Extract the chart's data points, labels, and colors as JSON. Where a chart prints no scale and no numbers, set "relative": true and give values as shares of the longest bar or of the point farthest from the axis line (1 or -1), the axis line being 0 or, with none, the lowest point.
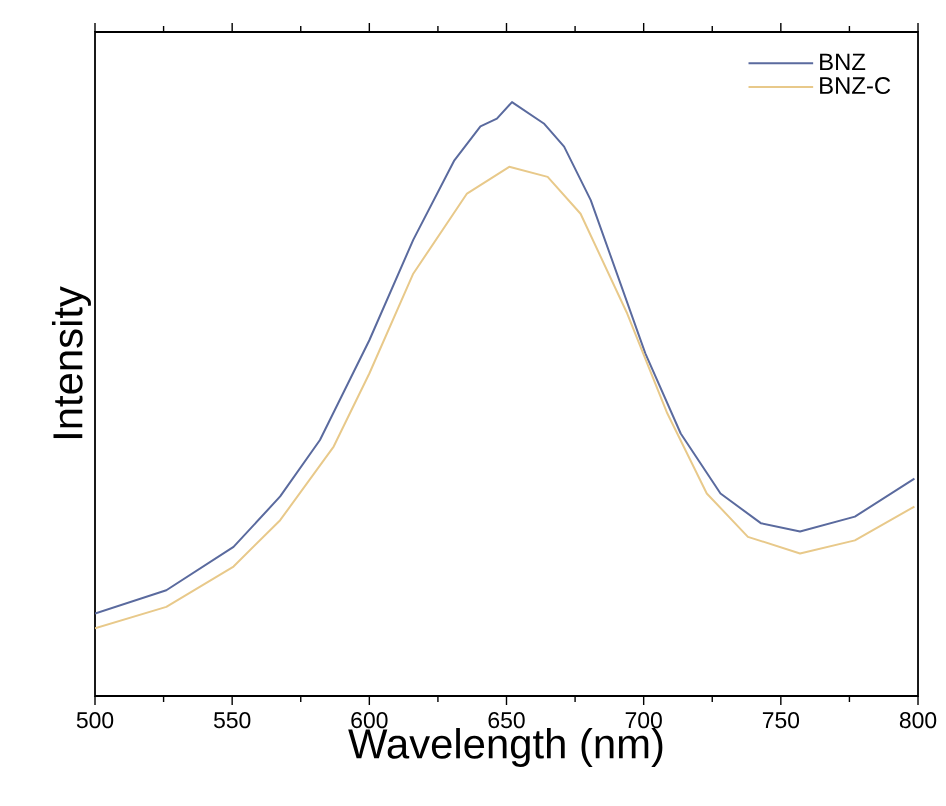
{
  "chart_data": {
    "type": "line",
    "xlabel": "Wavelength (nm)",
    "ylabel": "Intensity",
    "relative": true,
    "xlim": [
      500,
      800
    ],
    "xticks": [
      500,
      550,
      600,
      650,
      700,
      750,
      800
    ],
    "legend": "top right",
    "marker": "none",
    "line_style": "solid",
    "grid": false,
    "series": [
      {
        "name": "BNZ",
        "color": "#5a6a9e",
        "x": [
          500,
          526,
          550.5,
          567.5,
          582,
          600,
          616,
          631,
          640.5,
          646.5,
          652,
          663.6,
          671,
          680.7,
          700.6,
          713.5,
          728,
          742.7,
          757,
          777,
          798.7
        ],
        "values": [
          0.139,
          0.178,
          0.251,
          0.336,
          0.431,
          0.599,
          0.768,
          0.902,
          0.959,
          0.972,
          1.0,
          0.964,
          0.925,
          0.835,
          0.577,
          0.442,
          0.341,
          0.291,
          0.277,
          0.302,
          0.366
        ]
      },
      {
        "name": "BNZ-C",
        "color": "#e8c98a",
        "x": [
          500,
          526,
          550.5,
          567.5,
          587,
          600,
          616,
          635.6,
          651,
          665,
          677,
          694,
          708.6,
          723,
          738,
          757,
          777,
          798.7
        ],
        "values": [
          0.114,
          0.15,
          0.218,
          0.296,
          0.42,
          0.543,
          0.711,
          0.846,
          0.891,
          0.874,
          0.812,
          0.644,
          0.476,
          0.341,
          0.268,
          0.24,
          0.262,
          0.319
        ]
      }
    ]
  }
}
